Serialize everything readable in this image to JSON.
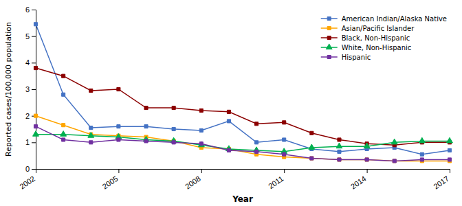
{
  "chart_data": {
    "type": "line",
    "x": [
      2002,
      2003,
      2004,
      2005,
      2006,
      2007,
      2008,
      2009,
      2010,
      2011,
      2012,
      2013,
      2014,
      2015,
      2016,
      2017
    ],
    "series": [
      {
        "name": "American Indian/Alaska Native",
        "color": "#4472C4",
        "marker": "square",
        "values": [
          5.45,
          2.8,
          1.55,
          1.6,
          1.6,
          1.5,
          1.45,
          1.8,
          1.0,
          1.1,
          0.75,
          0.65,
          0.75,
          0.8,
          0.55,
          0.7
        ]
      },
      {
        "name": "Asian/Pacific Islander",
        "color": "#FFA500",
        "marker": "square",
        "values": [
          2.0,
          1.65,
          1.3,
          1.25,
          1.2,
          1.05,
          0.8,
          0.75,
          0.55,
          0.45,
          0.4,
          0.35,
          0.35,
          0.3,
          0.3,
          0.3
        ]
      },
      {
        "name": "Black, Non-Hispanic",
        "color": "#8B0000",
        "marker": "square",
        "values": [
          3.8,
          3.5,
          2.95,
          3.0,
          2.3,
          2.3,
          2.2,
          2.15,
          1.7,
          1.75,
          1.35,
          1.1,
          0.95,
          0.9,
          1.0,
          1.0
        ]
      },
      {
        "name": "White, Non-Hispanic",
        "color": "#00B050",
        "marker": "triangle",
        "values": [
          1.3,
          1.3,
          1.25,
          1.2,
          1.1,
          1.05,
          0.9,
          0.75,
          0.7,
          0.65,
          0.8,
          0.85,
          0.85,
          1.0,
          1.05,
          1.05
        ]
      },
      {
        "name": "Hispanic",
        "color": "#7030A0",
        "marker": "square",
        "values": [
          1.6,
          1.1,
          1.0,
          1.1,
          1.05,
          1.0,
          0.95,
          0.7,
          0.65,
          0.55,
          0.4,
          0.35,
          0.35,
          0.3,
          0.35,
          0.35
        ]
      }
    ],
    "xlabel": "Year",
    "ylabel": "Reported cases/100,000 population",
    "xlim": [
      2002,
      2017
    ],
    "xticks": [
      2002,
      2005,
      2008,
      2011,
      2014,
      2017
    ],
    "ylim": [
      0,
      6
    ],
    "yticks": [
      0,
      1,
      2,
      3,
      4,
      5,
      6
    ],
    "legend": "upper right",
    "grid": false
  }
}
